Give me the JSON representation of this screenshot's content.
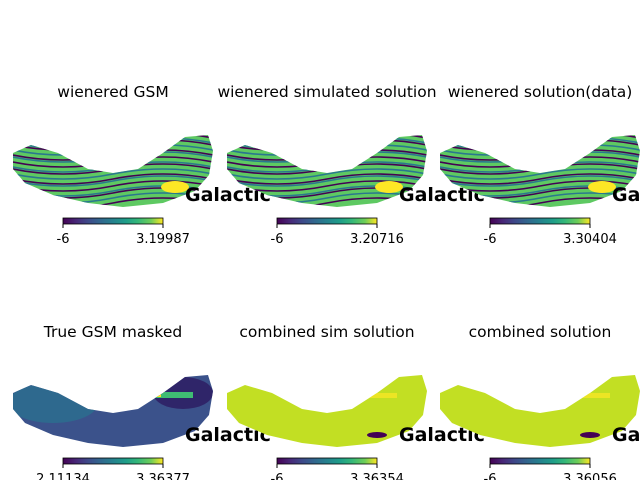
{
  "chart_data": [
    {
      "type": "heatmap",
      "title": "wienered GSM",
      "projection_label": "Galactic",
      "colorbar": {
        "min_label": "-6",
        "max_label": "3.19987",
        "range": [
          -6,
          3.19987
        ]
      },
      "pattern": "striped",
      "colors": [
        "#440154",
        "#2a788e",
        "#5ec962",
        "#fde725"
      ]
    },
    {
      "type": "heatmap",
      "title": "wienered simulated solution",
      "projection_label": "Galactic",
      "colorbar": {
        "min_label": "-6",
        "max_label": "3.20716",
        "range": [
          -6,
          3.20716
        ]
      },
      "pattern": "striped",
      "colors": [
        "#440154",
        "#2a788e",
        "#5ec962",
        "#fde725"
      ]
    },
    {
      "type": "heatmap",
      "title": "wienered solution(data)",
      "projection_label": "Galactic",
      "colorbar": {
        "min_label": "-6",
        "max_label": "3.30404",
        "range": [
          -6,
          3.30404
        ]
      },
      "pattern": "striped",
      "colors": [
        "#440154",
        "#2a788e",
        "#5ec962",
        "#fde725"
      ]
    },
    {
      "type": "heatmap",
      "title": "True GSM masked",
      "projection_label": "Galactic",
      "colorbar": {
        "min_label": "2.11134",
        "max_label": "3.36377",
        "range": [
          2.11134,
          3.36377
        ]
      },
      "pattern": "smooth",
      "colors": [
        "#3b528b",
        "#2c6f8e",
        "#3fbc73",
        "#fde725"
      ]
    },
    {
      "type": "heatmap",
      "title": "combined sim solution",
      "projection_label": "Galactic",
      "colorbar": {
        "min_label": "-6",
        "max_label": "3.36354",
        "range": [
          -6,
          3.36354
        ]
      },
      "pattern": "uniform",
      "colors": [
        "#c2df23",
        "#addc30",
        "#fde725",
        "#440154"
      ]
    },
    {
      "type": "heatmap",
      "title": "combined solution",
      "projection_label": "Galactic",
      "colorbar": {
        "min_label": "-6",
        "max_label": "3.36056",
        "range": [
          -6,
          3.36056
        ]
      },
      "pattern": "uniform",
      "colors": [
        "#c2df23",
        "#addc30",
        "#fde725",
        "#440154"
      ]
    }
  ]
}
